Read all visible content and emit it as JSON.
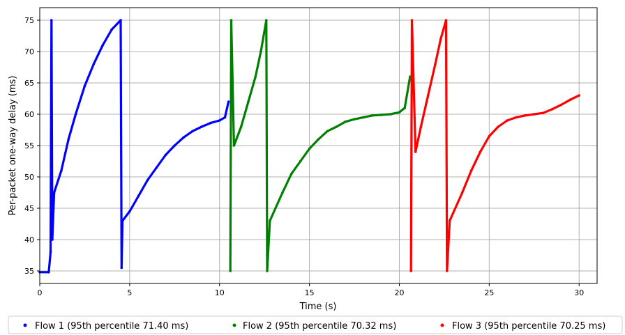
{
  "chart_data": {
    "type": "scatter",
    "xlabel": "Time (s)",
    "ylabel": "Per-packet one-way delay (ms)",
    "xlim": [
      0,
      31
    ],
    "ylim": [
      33,
      77
    ],
    "xticks": [
      0,
      5,
      10,
      15,
      20,
      25,
      30
    ],
    "yticks": [
      35,
      40,
      45,
      50,
      55,
      60,
      65,
      70,
      75
    ],
    "grid": true,
    "legend_position": "bottom",
    "series": [
      {
        "name": "Flow 1 (95th percentile 71.40 ms)",
        "color": "#0000ff",
        "points": [
          [
            0.0,
            34.8
          ],
          [
            0.5,
            34.8
          ],
          [
            0.6,
            38
          ],
          [
            0.65,
            75.0
          ],
          [
            0.7,
            40
          ],
          [
            0.8,
            47.5
          ],
          [
            1.2,
            51
          ],
          [
            1.6,
            56
          ],
          [
            2.0,
            60
          ],
          [
            2.5,
            64.5
          ],
          [
            3.0,
            68
          ],
          [
            3.5,
            71
          ],
          [
            4.0,
            73.5
          ],
          [
            4.5,
            75.0
          ],
          [
            4.55,
            35.5
          ],
          [
            4.6,
            43
          ],
          [
            5.0,
            44.5
          ],
          [
            5.5,
            47
          ],
          [
            6.0,
            49.5
          ],
          [
            6.5,
            51.5
          ],
          [
            7.0,
            53.5
          ],
          [
            7.5,
            55
          ],
          [
            8.0,
            56.3
          ],
          [
            8.5,
            57.3
          ],
          [
            9.0,
            58
          ],
          [
            9.5,
            58.6
          ],
          [
            10.0,
            59
          ],
          [
            10.3,
            59.5
          ],
          [
            10.5,
            62
          ]
        ]
      },
      {
        "name": "Flow 2 (95th percentile 70.32 ms)",
        "color": "#008000",
        "points": [
          [
            10.6,
            35
          ],
          [
            10.65,
            75.0
          ],
          [
            10.8,
            55
          ],
          [
            11.2,
            58
          ],
          [
            11.6,
            62
          ],
          [
            12.0,
            66
          ],
          [
            12.3,
            70
          ],
          [
            12.6,
            75.0
          ],
          [
            12.65,
            35
          ],
          [
            12.8,
            43
          ],
          [
            13.5,
            47.5
          ],
          [
            14.0,
            50.5
          ],
          [
            14.5,
            52.5
          ],
          [
            15.0,
            54.5
          ],
          [
            15.5,
            56
          ],
          [
            16.0,
            57.3
          ],
          [
            16.5,
            58
          ],
          [
            17.0,
            58.8
          ],
          [
            17.5,
            59.2
          ],
          [
            18.0,
            59.5
          ],
          [
            18.5,
            59.8
          ],
          [
            19.0,
            59.9
          ],
          [
            19.5,
            60
          ],
          [
            20.0,
            60.3
          ],
          [
            20.3,
            61
          ],
          [
            20.6,
            66
          ]
        ]
      },
      {
        "name": "Flow 3 (95th percentile 70.25 ms)",
        "color": "#ff0000",
        "points": [
          [
            20.65,
            35
          ],
          [
            20.7,
            75.0
          ],
          [
            20.9,
            54
          ],
          [
            21.2,
            58
          ],
          [
            21.6,
            63
          ],
          [
            22.0,
            68
          ],
          [
            22.3,
            72
          ],
          [
            22.6,
            75.0
          ],
          [
            22.65,
            35
          ],
          [
            22.8,
            43
          ],
          [
            23.5,
            47.5
          ],
          [
            24.0,
            51
          ],
          [
            24.5,
            54
          ],
          [
            25.0,
            56.5
          ],
          [
            25.5,
            58
          ],
          [
            26.0,
            59
          ],
          [
            26.5,
            59.5
          ],
          [
            27.0,
            59.8
          ],
          [
            27.5,
            60
          ],
          [
            28.0,
            60.2
          ],
          [
            28.5,
            60.8
          ],
          [
            29.0,
            61.5
          ],
          [
            29.5,
            62.3
          ],
          [
            30.0,
            63
          ]
        ]
      }
    ]
  }
}
